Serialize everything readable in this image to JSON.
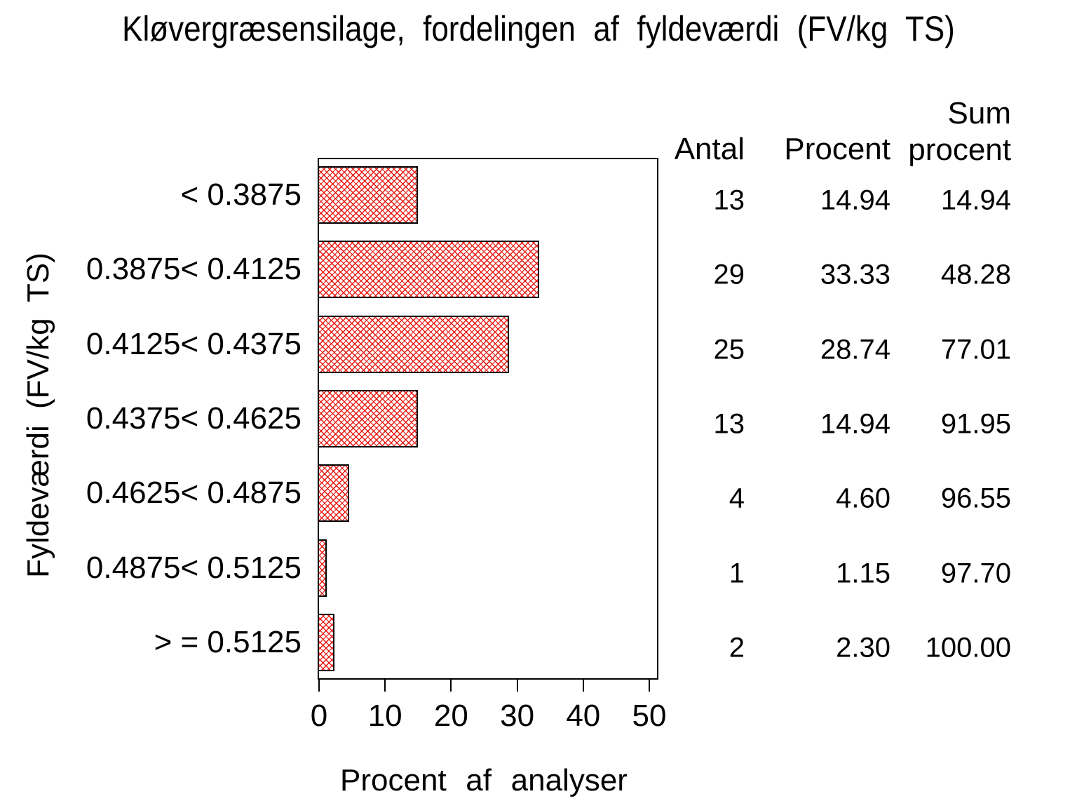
{
  "title": "Kløvergræsensilage, fordelingen af fyldeværdi (FV/kg TS)",
  "y_axis_label": "Fyldeværdi (FV/kg TS)",
  "x_axis_label": "Procent af analyser",
  "table": {
    "headers": {
      "antal": "Antal",
      "procent": "Procent",
      "sum_line1": "Sum",
      "sum_line2": "procent"
    }
  },
  "rows": [
    {
      "label": "< 0.3875",
      "antal": "13",
      "procent": "14.94",
      "sum": "14.94"
    },
    {
      "label": "0.3875< 0.4125",
      "antal": "29",
      "procent": "33.33",
      "sum": "48.28"
    },
    {
      "label": "0.4125< 0.4375",
      "antal": "25",
      "procent": "28.74",
      "sum": "77.01"
    },
    {
      "label": "0.4375< 0.4625",
      "antal": "13",
      "procent": "14.94",
      "sum": "91.95"
    },
    {
      "label": "0.4625< 0.4875",
      "antal": "4",
      "procent": "4.60",
      "sum": "96.55"
    },
    {
      "label": "0.4875< 0.5125",
      "antal": "1",
      "procent": "1.15",
      "sum": "97.70"
    },
    {
      "label": "> = 0.5125",
      "antal": "2",
      "procent": "2.30",
      "sum": "100.00"
    }
  ],
  "chart_data": {
    "type": "bar",
    "orientation": "horizontal",
    "title": "Kløvergræsensilage, fordelingen af fyldeværdi (FV/kg TS)",
    "xlabel": "Procent af analyser",
    "ylabel": "Fyldeværdi (FV/kg TS)",
    "categories": [
      "< 0.3875",
      "0.3875< 0.4125",
      "0.4125< 0.4375",
      "0.4375< 0.4625",
      "0.4625< 0.4875",
      "0.4875< 0.5125",
      "> = 0.5125"
    ],
    "values": [
      14.94,
      33.33,
      28.74,
      14.94,
      4.6,
      1.15,
      2.3
    ],
    "counts": [
      13,
      29,
      25,
      13,
      4,
      1,
      2
    ],
    "cum_percents": [
      14.94,
      48.28,
      77.01,
      91.95,
      96.55,
      97.7,
      100.0
    ],
    "xlim": [
      0,
      50
    ],
    "xticks": [
      0,
      10,
      20,
      30,
      40,
      50
    ],
    "grid": "off",
    "legend": "none",
    "bar_fill_style": "red-crosshatch",
    "hatch_color": "#e8150d",
    "bar_border_color": "#000000",
    "frame_color": "#000000"
  }
}
